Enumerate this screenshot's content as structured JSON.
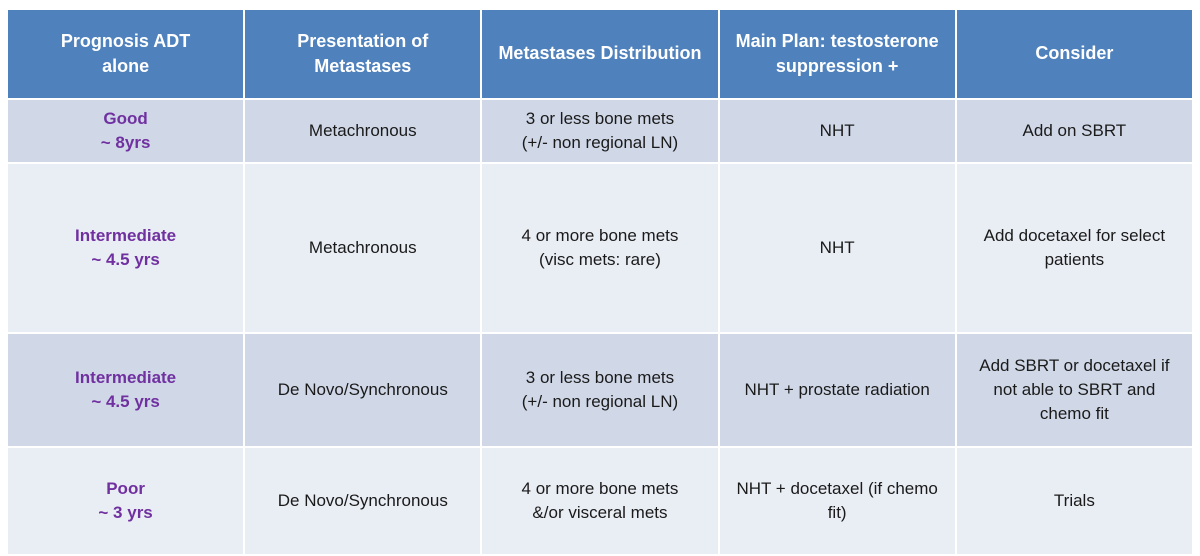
{
  "table": {
    "headers": [
      [
        "Prognosis ADT",
        "alone"
      ],
      [
        "Presentation of",
        "Metastases"
      ],
      [
        "Metastases Distribution"
      ],
      [
        "Main Plan: testosterone",
        "suppression +"
      ],
      [
        "Consider"
      ]
    ],
    "rows": [
      {
        "prognosis": [
          "Good",
          "~ 8yrs"
        ],
        "presentation": [
          "Metachronous"
        ],
        "distribution": [
          "3 or less bone mets",
          "(+/- non regional LN)"
        ],
        "plan": [
          "NHT"
        ],
        "consider": [
          "Add on SBRT"
        ]
      },
      {
        "prognosis": [
          "Intermediate",
          "~ 4.5 yrs"
        ],
        "presentation": [
          "Metachronous"
        ],
        "distribution": [
          "4 or more bone mets",
          "(visc mets: rare)"
        ],
        "plan": [
          "NHT"
        ],
        "consider": [
          "Add docetaxel for select",
          "patients"
        ]
      },
      {
        "prognosis": [
          "Intermediate",
          "~ 4.5 yrs"
        ],
        "presentation": [
          "De Novo/Synchronous"
        ],
        "distribution": [
          "3 or less bone mets",
          "(+/- non regional LN)"
        ],
        "plan": [
          "NHT + prostate radiation"
        ],
        "consider": [
          "Add SBRT or docetaxel if",
          "not able to SBRT and",
          "chemo fit"
        ]
      },
      {
        "prognosis": [
          "Poor",
          "~ 3 yrs"
        ],
        "presentation": [
          "De Novo/Synchronous"
        ],
        "distribution": [
          "4 or more bone mets",
          "&/or visceral mets"
        ],
        "plan": [
          "NHT + docetaxel (if chemo",
          "fit)"
        ],
        "consider": [
          "Trials"
        ]
      }
    ]
  },
  "colors": {
    "header_bg": "#4f81bd",
    "row_dark": "#d0d8e8",
    "row_light": "#e9edf4",
    "prognosis_text": "#7030a0"
  }
}
